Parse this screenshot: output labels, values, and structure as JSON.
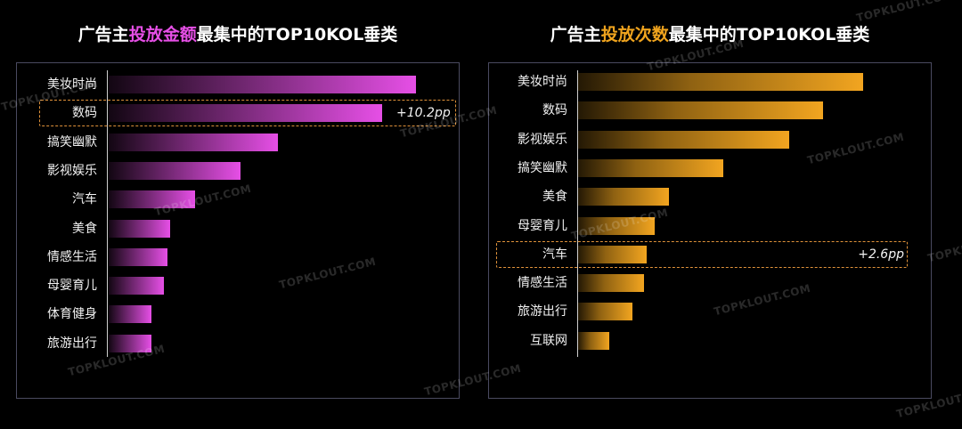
{
  "watermark": "TOPKLOUT.COM",
  "colors": {
    "left_accent": "#e64fe6",
    "right_accent": "#f0a41e"
  },
  "chart_data": [
    {
      "type": "bar",
      "orientation": "horizontal",
      "title_parts": [
        "广告主",
        "投放金额",
        "最集中的TOP10KOL垂类"
      ],
      "categories": [
        "美妆时尚",
        "数码",
        "搞笑幽默",
        "影视娱乐",
        "汽车",
        "美食",
        "情感生活",
        "母婴育儿",
        "体育健身",
        "旅游出行"
      ],
      "values": [
        100,
        89,
        55,
        43,
        28,
        20,
        19,
        18,
        14,
        14
      ],
      "xlim": [
        0,
        100
      ],
      "grid": false,
      "highlight": {
        "category": "数码",
        "label": "+10.2pp"
      }
    },
    {
      "type": "bar",
      "orientation": "horizontal",
      "title_parts": [
        "广告主",
        "投放次数",
        "最集中的TOP10KOL垂类"
      ],
      "categories": [
        "美妆时尚",
        "数码",
        "影视娱乐",
        "搞笑幽默",
        "美食",
        "母婴育儿",
        "汽车",
        "情感生活",
        "旅游出行",
        "互联网"
      ],
      "values": [
        100,
        86,
        74,
        51,
        32,
        27,
        24,
        23,
        19,
        11
      ],
      "xlim": [
        0,
        100
      ],
      "grid": false,
      "highlight": {
        "category": "汽车",
        "label": "+2.6pp"
      }
    }
  ]
}
